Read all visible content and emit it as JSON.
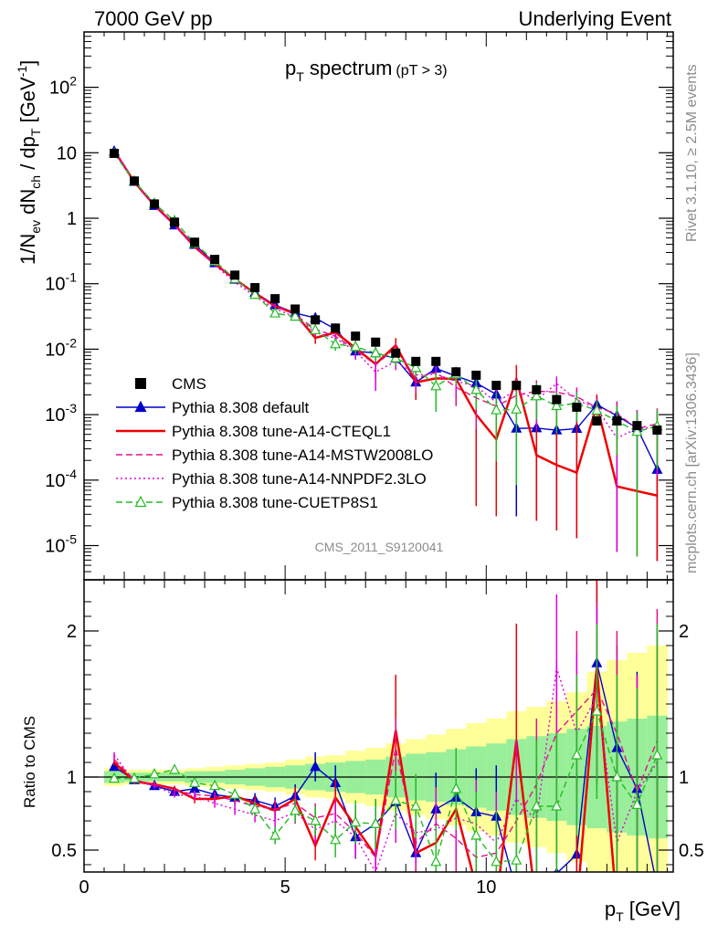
{
  "header": {
    "left": "7000 GeV pp",
    "right": "Underlying Event",
    "plot_title": "p_T spectrum",
    "plot_title_main": "p",
    "plot_title_sub": "T",
    "plot_title_rest": " spectrum",
    "plot_title_cut": "(pT >  3)",
    "analysis_id": "CMS_2011_S9120041",
    "side_text_1": "Rivet 3.1.10, ≥ 2.5M events",
    "side_text_2": "mcplots.cern.ch [arXiv:1306.3436]"
  },
  "axes": {
    "ylabel_main": "1/N_ev dN_ch / dp_T [GeV^-1]",
    "ylabel_ratio": "Ratio to CMS",
    "xlabel": "p_T [GeV]",
    "xlabel_p": "p",
    "xlabel_sub": "T",
    "xlabel_unit": " [GeV]",
    "xlim": [
      0,
      14.65
    ],
    "ylim_main": [
      3e-06,
      700
    ],
    "ylim_ratio": [
      0.35,
      2.35
    ],
    "main_ticks": [
      {
        "v": 100,
        "label": "10^2"
      },
      {
        "v": 10,
        "label": "10"
      },
      {
        "v": 1,
        "label": "1"
      },
      {
        "v": 0.1,
        "label": "10^-1"
      },
      {
        "v": 0.01,
        "label": "10^-2"
      },
      {
        "v": 0.001,
        "label": "10^-3"
      },
      {
        "v": 0.0001,
        "label": "10^-4"
      },
      {
        "v": 1e-05,
        "label": "10^-5"
      }
    ],
    "ratio_ticks": [
      {
        "v": 0.5,
        "label": "0.5"
      },
      {
        "v": 1,
        "label": "1"
      },
      {
        "v": 2,
        "label": "2"
      }
    ],
    "x_ticks": [
      {
        "v": 0,
        "label": "0"
      },
      {
        "v": 5,
        "label": "5"
      },
      {
        "v": 10,
        "label": "10"
      }
    ]
  },
  "legend": [
    {
      "label": "CMS",
      "color": "#000000",
      "style": "solid",
      "marker": "square"
    },
    {
      "label": "Pythia 8.308 default",
      "color": "#0000cc",
      "style": "solid",
      "marker": "triangle"
    },
    {
      "label": "Pythia 8.308 tune-A14-CTEQL1",
      "color": "#ee0000",
      "style": "solid",
      "marker": "none"
    },
    {
      "label": "Pythia 8.308 tune-A14-MSTW2008LO",
      "color": "#e3118a",
      "style": "dashed",
      "marker": "none"
    },
    {
      "label": "Pythia 8.308 tune-A14-NNPDF2.3LO",
      "color": "#dd00dd",
      "style": "dotted",
      "marker": "none"
    },
    {
      "label": "Pythia 8.308 tune-CUETP8S1",
      "color": "#22bb22",
      "style": "dashed",
      "marker": "open-triangle"
    }
  ],
  "chart_data": {
    "type": "scatter",
    "x": [
      0.75,
      1.25,
      1.75,
      2.25,
      2.75,
      3.25,
      3.75,
      4.25,
      4.75,
      5.25,
      5.75,
      6.25,
      6.75,
      7.25,
      7.75,
      8.25,
      8.75,
      9.25,
      9.75,
      10.25,
      10.75,
      11.25,
      11.75,
      12.25,
      12.75,
      13.25,
      13.75,
      14.25
    ],
    "data": {
      "name": "CMS",
      "values": [
        9.8,
        3.7,
        1.65,
        0.87,
        0.43,
        0.235,
        0.135,
        0.087,
        0.059,
        0.041,
        0.028,
        0.021,
        0.0158,
        0.0128,
        0.0087,
        0.0065,
        0.0065,
        0.0045,
        0.004,
        0.0028,
        0.0028,
        0.0024,
        0.0017,
        0.0013,
        0.0008,
        0.0008,
        0.00068,
        0.00058
      ],
      "band_outer": [
        0.06,
        0.05,
        0.05,
        0.05,
        0.06,
        0.07,
        0.08,
        0.09,
        0.1,
        0.12,
        0.14,
        0.15,
        0.18,
        0.2,
        0.23,
        0.26,
        0.29,
        0.33,
        0.37,
        0.4,
        0.45,
        0.48,
        0.52,
        0.58,
        0.72,
        0.8,
        0.85,
        0.9
      ],
      "band_inner": [
        0.04,
        0.03,
        0.03,
        0.03,
        0.04,
        0.04,
        0.05,
        0.06,
        0.07,
        0.08,
        0.09,
        0.1,
        0.11,
        0.12,
        0.14,
        0.16,
        0.17,
        0.19,
        0.21,
        0.23,
        0.26,
        0.28,
        0.3,
        0.33,
        0.35,
        0.38,
        0.4,
        0.42
      ]
    },
    "series": [
      {
        "name": "Pythia 8.308 default",
        "ratio": [
          1.07,
          0.98,
          0.94,
          0.9,
          0.92,
          0.88,
          0.86,
          0.84,
          0.8,
          0.87,
          1.07,
          0.96,
          0.59,
          0.68,
          0.83,
          0.48,
          0.78,
          0.86,
          0.76,
          0.73,
          0.22,
          0.26,
          0.34,
          0.47,
          1.78,
          1.2,
          0.92,
          0.25
        ],
        "err": [
          0.02,
          0.02,
          0.02,
          0.02,
          0.03,
          0.03,
          0.04,
          0.05,
          0.06,
          0.08,
          0.1,
          0.12,
          0.15,
          0.17,
          0.2,
          0.22,
          0.25,
          0.28,
          0.3,
          0.35,
          0.4,
          0.45,
          0.5,
          0.55,
          0.6,
          0.7,
          0.8,
          0.9
        ]
      },
      {
        "name": "Pythia 8.308 tune-A14-CTEQL1",
        "ratio": [
          1.1,
          0.97,
          0.95,
          0.92,
          0.85,
          0.85,
          0.87,
          0.82,
          0.77,
          0.85,
          0.53,
          0.86,
          0.66,
          0.46,
          1.32,
          0.48,
          0.55,
          0.78,
          0.25,
          0.15,
          1.25,
          0.1,
          0.1,
          0.1,
          1.75,
          0.1,
          0.1,
          0.1
        ],
        "err": [
          0.02,
          0.02,
          0.02,
          0.02,
          0.03,
          0.03,
          0.04,
          0.05,
          0.06,
          0.08,
          0.1,
          0.12,
          0.15,
          0.17,
          0.38,
          0.22,
          0.25,
          0.28,
          0.3,
          0.35,
          0.8,
          0.45,
          0.5,
          0.55,
          0.8,
          0.7,
          0.8,
          0.9
        ]
      },
      {
        "name": "Pythia 8.308 tune-A14-MSTW2008LO",
        "ratio": [
          1.12,
          0.98,
          0.95,
          0.91,
          0.88,
          0.87,
          0.84,
          0.8,
          0.78,
          0.82,
          0.72,
          0.75,
          0.62,
          0.45,
          1.2,
          0.55,
          0.68,
          0.58,
          0.45,
          0.48,
          0.7,
          0.95,
          1.3,
          1.45,
          1.6,
          1.3,
          0.9,
          1.25
        ],
        "err": [
          0.02,
          0.02,
          0.02,
          0.02,
          0.03,
          0.03,
          0.04,
          0.05,
          0.06,
          0.08,
          0.1,
          0.12,
          0.15,
          0.17,
          0.2,
          0.22,
          0.25,
          0.28,
          0.3,
          0.35,
          0.4,
          0.45,
          0.5,
          0.55,
          0.6,
          0.7,
          0.8,
          0.9
        ]
      },
      {
        "name": "Pythia 8.308 tune-A14-NNPDF2.3LO",
        "ratio": [
          1.15,
          0.97,
          0.94,
          0.88,
          0.87,
          0.82,
          0.78,
          0.74,
          0.7,
          0.76,
          0.64,
          0.7,
          0.59,
          0.35,
          0.75,
          0.62,
          0.64,
          0.72,
          0.68,
          0.55,
          0.85,
          0.7,
          1.75,
          1.3,
          1.55,
          0.55,
          0.9,
          1.1
        ],
        "err": [
          0.02,
          0.02,
          0.02,
          0.02,
          0.03,
          0.03,
          0.04,
          0.05,
          0.06,
          0.08,
          0.1,
          0.12,
          0.15,
          0.17,
          0.2,
          0.22,
          0.25,
          0.28,
          0.3,
          0.35,
          0.4,
          0.45,
          0.5,
          0.55,
          0.6,
          0.7,
          0.8,
          0.9
        ]
      },
      {
        "name": "Pythia 8.308 tune-CUETP8S1",
        "ratio": [
          0.99,
          0.99,
          1.02,
          1.05,
          0.96,
          0.94,
          0.88,
          0.78,
          0.6,
          0.77,
          0.7,
          0.57,
          0.69,
          0.68,
          0.84,
          0.8,
          0.42,
          0.92,
          0.6,
          0.42,
          0.43,
          0.8,
          0.8,
          1.15,
          1.45,
          1.0,
          0.81,
          1.15
        ],
        "err": [
          0.02,
          0.02,
          0.02,
          0.02,
          0.03,
          0.03,
          0.04,
          0.05,
          0.06,
          0.08,
          0.1,
          0.12,
          0.15,
          0.17,
          0.2,
          0.22,
          0.25,
          0.28,
          0.3,
          0.35,
          0.4,
          0.45,
          0.5,
          0.55,
          0.6,
          0.7,
          0.8,
          0.9
        ]
      }
    ]
  }
}
